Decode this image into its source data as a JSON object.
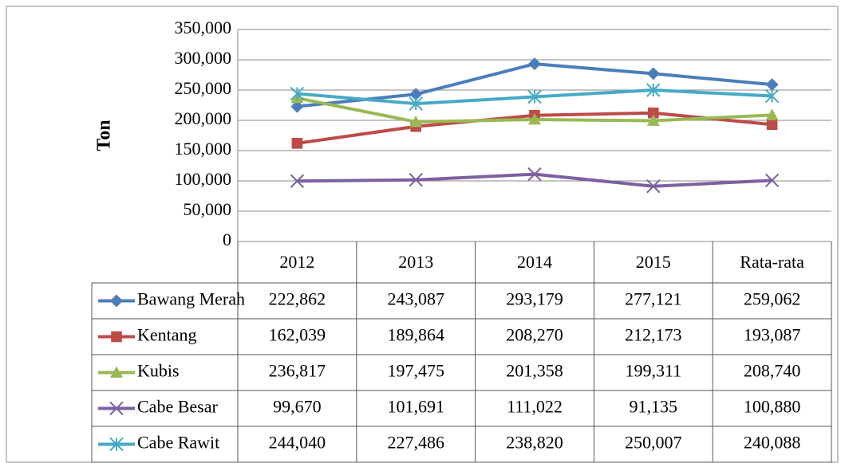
{
  "chart_data": {
    "type": "line",
    "ylabel": "Ton",
    "categories": [
      "2012",
      "2013",
      "2014",
      "2015",
      "Rata-rata"
    ],
    "ylim": [
      0,
      350000
    ],
    "yticks": [
      0,
      {
        "value": 50000,
        "label": "50,000"
      },
      {
        "value": 100000,
        "label": "100,000"
      },
      {
        "value": 150000,
        "label": "150,000"
      },
      {
        "value": 200000,
        "label": "200,000"
      },
      {
        "value": 250000,
        "label": "250,000"
      },
      {
        "value": 300000,
        "label": "300,000"
      },
      {
        "value": 350000,
        "label": "350,000"
      }
    ],
    "grid": true,
    "series": [
      {
        "name": "Bawang Merah",
        "color": "#4a7ebb",
        "marker": "diamond",
        "values": [
          222862,
          243087,
          293179,
          277121,
          259062
        ],
        "value_labels": [
          "222,862",
          "243,087",
          "293,179",
          "277,121",
          "259,062"
        ]
      },
      {
        "name": "Kentang",
        "color": "#be4b48",
        "marker": "square",
        "values": [
          162039,
          189864,
          208270,
          212173,
          193087
        ],
        "value_labels": [
          "162,039",
          "189,864",
          "208,270",
          "212,173",
          "193,087"
        ]
      },
      {
        "name": "Kubis",
        "color": "#98b954",
        "marker": "triangle",
        "values": [
          236817,
          197475,
          201358,
          199311,
          208740
        ],
        "value_labels": [
          "236,817",
          "197,475",
          "201,358",
          "199,311",
          "208,740"
        ]
      },
      {
        "name": "Cabe Besar",
        "color": "#7d60a0",
        "marker": "x",
        "values": [
          99670,
          101691,
          111022,
          91135,
          100880
        ],
        "value_labels": [
          "99,670",
          "101,691",
          "111,022",
          "91,135",
          "100,880"
        ]
      },
      {
        "name": "Cabe Rawit",
        "color": "#46aac5",
        "marker": "star",
        "values": [
          244040,
          227486,
          238820,
          250007,
          240088
        ],
        "value_labels": [
          "244,040",
          "227,486",
          "238,820",
          "250,007",
          "240,088"
        ]
      }
    ]
  }
}
